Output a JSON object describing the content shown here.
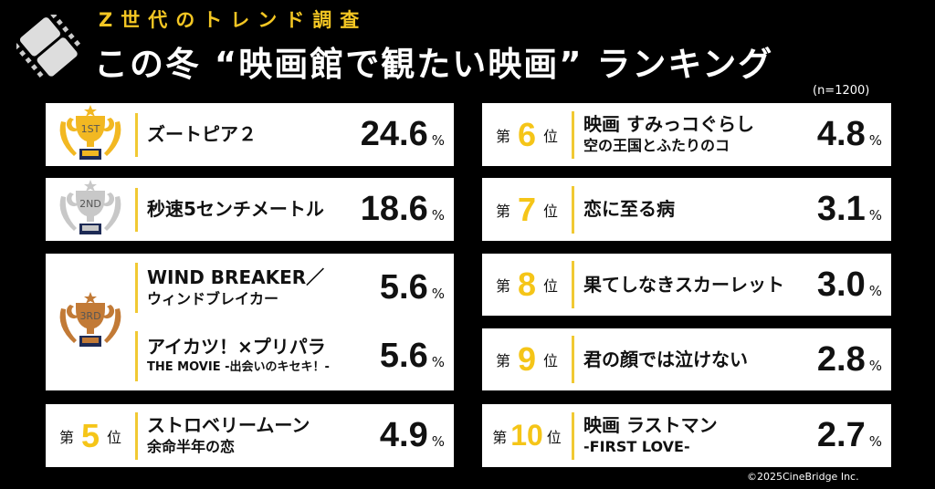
{
  "header": {
    "subtitle": "Z世代のトレンド調査",
    "title": "この冬 “映画館で観たい映画” ランキング",
    "sample": "(n=1200)"
  },
  "colors": {
    "accent": "#f5c518",
    "background": "#000000",
    "card": "#ffffff",
    "gold": "#f2b822",
    "silver": "#c8c8c8",
    "bronze": "#c27a36"
  },
  "labels": {
    "rank_prefix": "第",
    "rank_suffix": "位",
    "percent": "%"
  },
  "ranking": [
    {
      "rank": "1",
      "badge": "gold-trophy",
      "title": "ズートピア２",
      "value": "24.6"
    },
    {
      "rank": "2",
      "badge": "silver-trophy",
      "title": "秒速5センチメートル",
      "value": "18.6"
    },
    {
      "rank": "3",
      "badge": "bronze-trophy",
      "title": "WIND BREAKER／",
      "title2": "ウィンドブレイカー",
      "value": "5.6"
    },
    {
      "rank": "3",
      "title": "アイカツ！×プリパラ",
      "title2": "THE MOVIE -出会いのキセキ！-",
      "value": "5.6"
    },
    {
      "rank": "5",
      "title": "ストロベリームーン",
      "title2": "余命半年の恋",
      "value": "4.9"
    },
    {
      "rank": "6",
      "title": "映画 すみっコぐらし",
      "title2": "空の王国とふたりのコ",
      "value": "4.8"
    },
    {
      "rank": "7",
      "title": "恋に至る病",
      "value": "3.1"
    },
    {
      "rank": "8",
      "title": "果てしなきスカーレット",
      "value": "3.0"
    },
    {
      "rank": "9",
      "title": "君の顔では泣けない",
      "value": "2.8"
    },
    {
      "rank": "10",
      "title": "映画 ラストマン",
      "title2": "-FIRST LOVE-",
      "value": "2.7"
    }
  ],
  "footer": {
    "copyright": "©2025CineBridge Inc."
  }
}
